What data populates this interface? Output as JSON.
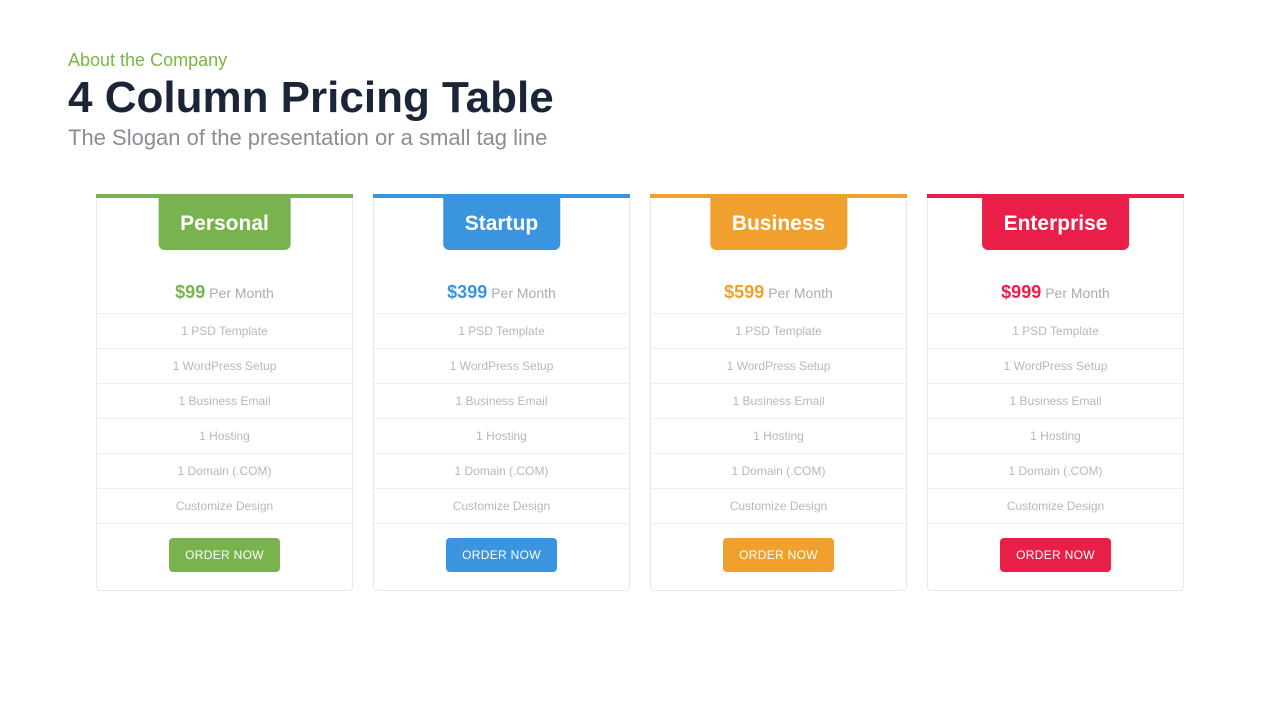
{
  "header": {
    "eyebrow": "About the Company",
    "eyebrow_color": "#7ab648",
    "title": "4 Column Pricing Table",
    "title_color": "#1b2538",
    "tagline": "The Slogan of the presentation or a small tag line",
    "tagline_color": "#888e98"
  },
  "common": {
    "period_label": "Per Month",
    "cta_label": "ORDER NOW",
    "features": [
      "1 PSD Template",
      "1 WordPress Setup",
      "1 Business Email",
      "1 Hosting",
      "1 Domain (.COM)",
      "Customize Design"
    ],
    "card_border_color": "#e8e8e8",
    "feature_text_color": "#b4b8be",
    "period_text_color": "#a8acb3"
  },
  "plans": [
    {
      "name": "Personal",
      "price": "$99",
      "color": "#79b34d"
    },
    {
      "name": "Startup",
      "price": "$399",
      "color": "#3a94de"
    },
    {
      "name": "Business",
      "price": "$599",
      "color": "#f0a02c"
    },
    {
      "name": "Enterprise",
      "price": "$999",
      "color": "#e91f47"
    }
  ]
}
